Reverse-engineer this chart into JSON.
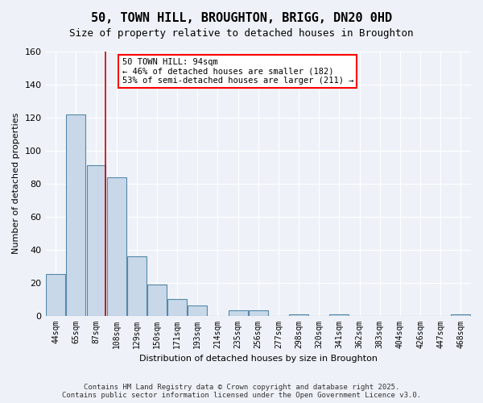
{
  "title": "50, TOWN HILL, BROUGHTON, BRIGG, DN20 0HD",
  "subtitle": "Size of property relative to detached houses in Broughton",
  "xlabel": "Distribution of detached houses by size in Broughton",
  "ylabel": "Number of detached properties",
  "categories": [
    "44sqm",
    "65sqm",
    "87sqm",
    "108sqm",
    "129sqm",
    "150sqm",
    "171sqm",
    "193sqm",
    "214sqm",
    "235sqm",
    "256sqm",
    "277sqm",
    "298sqm",
    "320sqm",
    "341sqm",
    "362sqm",
    "383sqm",
    "404sqm",
    "426sqm",
    "447sqm",
    "468sqm"
  ],
  "values": [
    25,
    122,
    91,
    84,
    36,
    19,
    10,
    6,
    0,
    3,
    3,
    0,
    1,
    0,
    1,
    0,
    0,
    0,
    0,
    0,
    1
  ],
  "bar_color": "#c8d8e8",
  "bar_edge_color": "#5588aa",
  "red_line_index": 2,
  "annotation_text": "50 TOWN HILL: 94sqm\n← 46% of detached houses are smaller (182)\n53% of semi-detached houses are larger (211) →",
  "annotation_box_color": "white",
  "annotation_box_edge_color": "red",
  "ylim": [
    0,
    160
  ],
  "yticks": [
    0,
    20,
    40,
    60,
    80,
    100,
    120,
    140,
    160
  ],
  "footer_line1": "Contains HM Land Registry data © Crown copyright and database right 2025.",
  "footer_line2": "Contains public sector information licensed under the Open Government Licence v3.0.",
  "bg_color": "#eef2f8",
  "plot_bg_color": "#eef2f8",
  "grid_color": "white",
  "red_line_color": "#cc0000"
}
